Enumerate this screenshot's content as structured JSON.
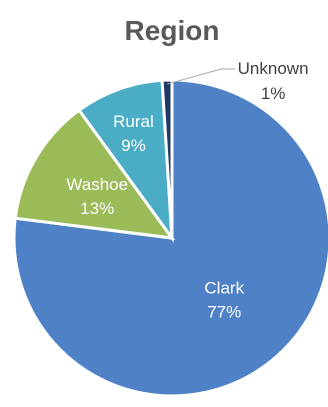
{
  "chart_data": {
    "type": "pie",
    "title": "Region",
    "categories": [
      "Clark",
      "Washoe",
      "Rural",
      "Unknown"
    ],
    "values": [
      77,
      13,
      9,
      1
    ],
    "labels": [
      "77%",
      "13%",
      "9%",
      "1%"
    ],
    "colors": [
      "#4F81C7",
      "#9BBB59",
      "#4BACC6",
      "#1F3864"
    ],
    "start_angle_deg": 0,
    "direction": "clockwise"
  }
}
